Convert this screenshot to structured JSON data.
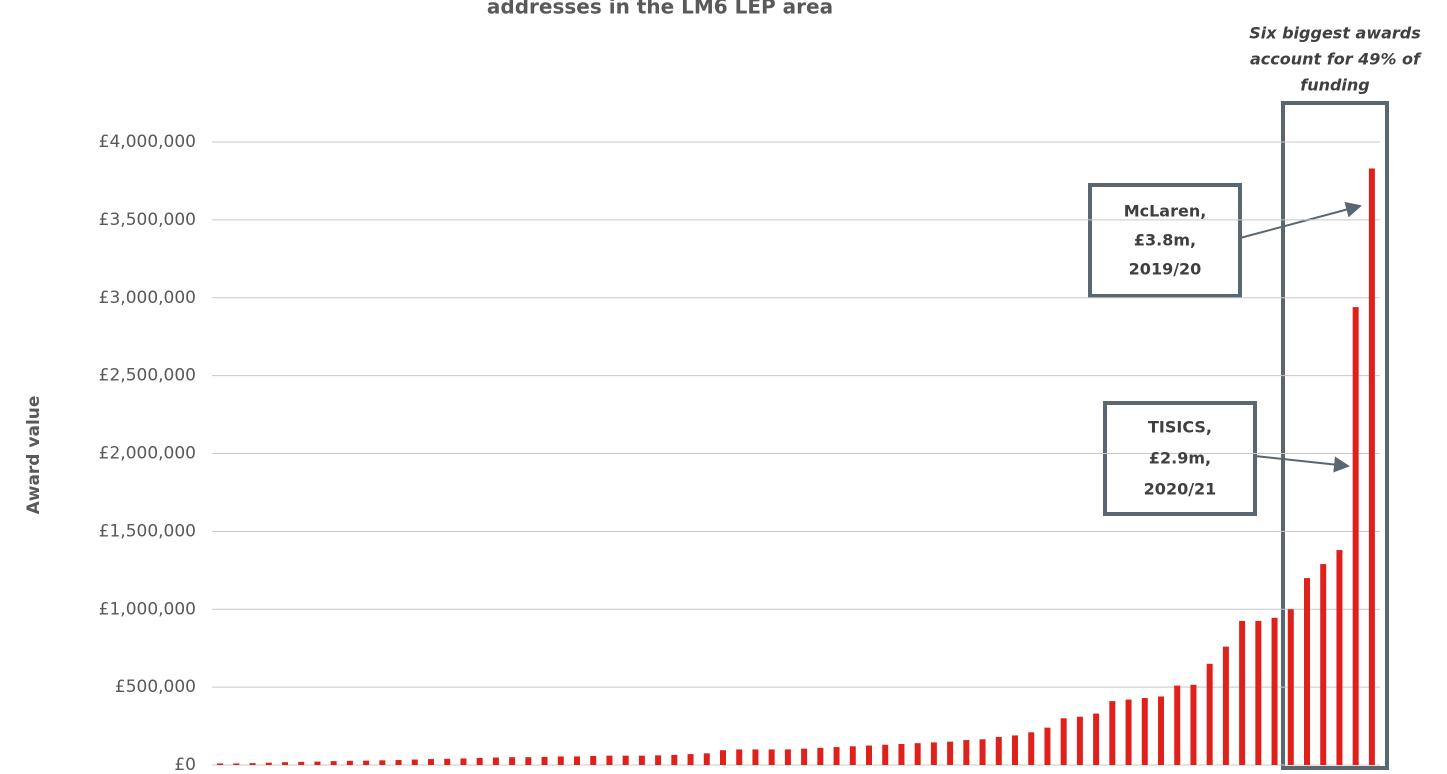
{
  "chart_data": {
    "type": "bar",
    "title": "addresses in the LM6 LEP area",
    "y_label": "Award value",
    "color": "#e0201b",
    "values": [
      10000,
      10000,
      12000,
      15000,
      18000,
      20000,
      22000,
      25000,
      27000,
      28000,
      30000,
      32000,
      35000,
      38000,
      40000,
      42000,
      45000,
      48000,
      50000,
      50000,
      52000,
      55000,
      55000,
      58000,
      60000,
      60000,
      60000,
      62000,
      65000,
      70000,
      75000,
      95000,
      100000,
      100000,
      100000,
      100000,
      105000,
      110000,
      115000,
      120000,
      125000,
      130000,
      135000,
      140000,
      145000,
      150000,
      160000,
      165000,
      180000,
      190000,
      210000,
      240000,
      300000,
      310000,
      330000,
      410000,
      420000,
      430000,
      440000,
      510000,
      515000,
      650000,
      760000,
      925000,
      925000,
      945000,
      1000000,
      1200000,
      1290000,
      1380000,
      2940000,
      3830000
    ],
    "ylim": [
      0,
      4000000
    ],
    "yticks": [
      {
        "value": 0,
        "label": "£0"
      },
      {
        "value": 500000,
        "label": "£500,000"
      },
      {
        "value": 1000000,
        "label": "£1,000,000"
      },
      {
        "value": 1500000,
        "label": "£1,500,000"
      },
      {
        "value": 2000000,
        "label": "£2,000,000"
      },
      {
        "value": 2500000,
        "label": "£2,500,000"
      },
      {
        "value": 3000000,
        "label": "£3,000,000"
      },
      {
        "value": 3500000,
        "label": "£3,500,000"
      },
      {
        "value": 4000000,
        "label": "£4,000,000"
      }
    ],
    "grid": true,
    "annotations": {
      "highlight": [
        "Six biggest awards",
        "account for 49% of",
        "funding"
      ],
      "mclaren": [
        "McLaren,",
        "£3.8m,",
        "2019/20"
      ],
      "tisics": [
        "TISICS,",
        "£2.9m,",
        "2020/21"
      ]
    }
  }
}
